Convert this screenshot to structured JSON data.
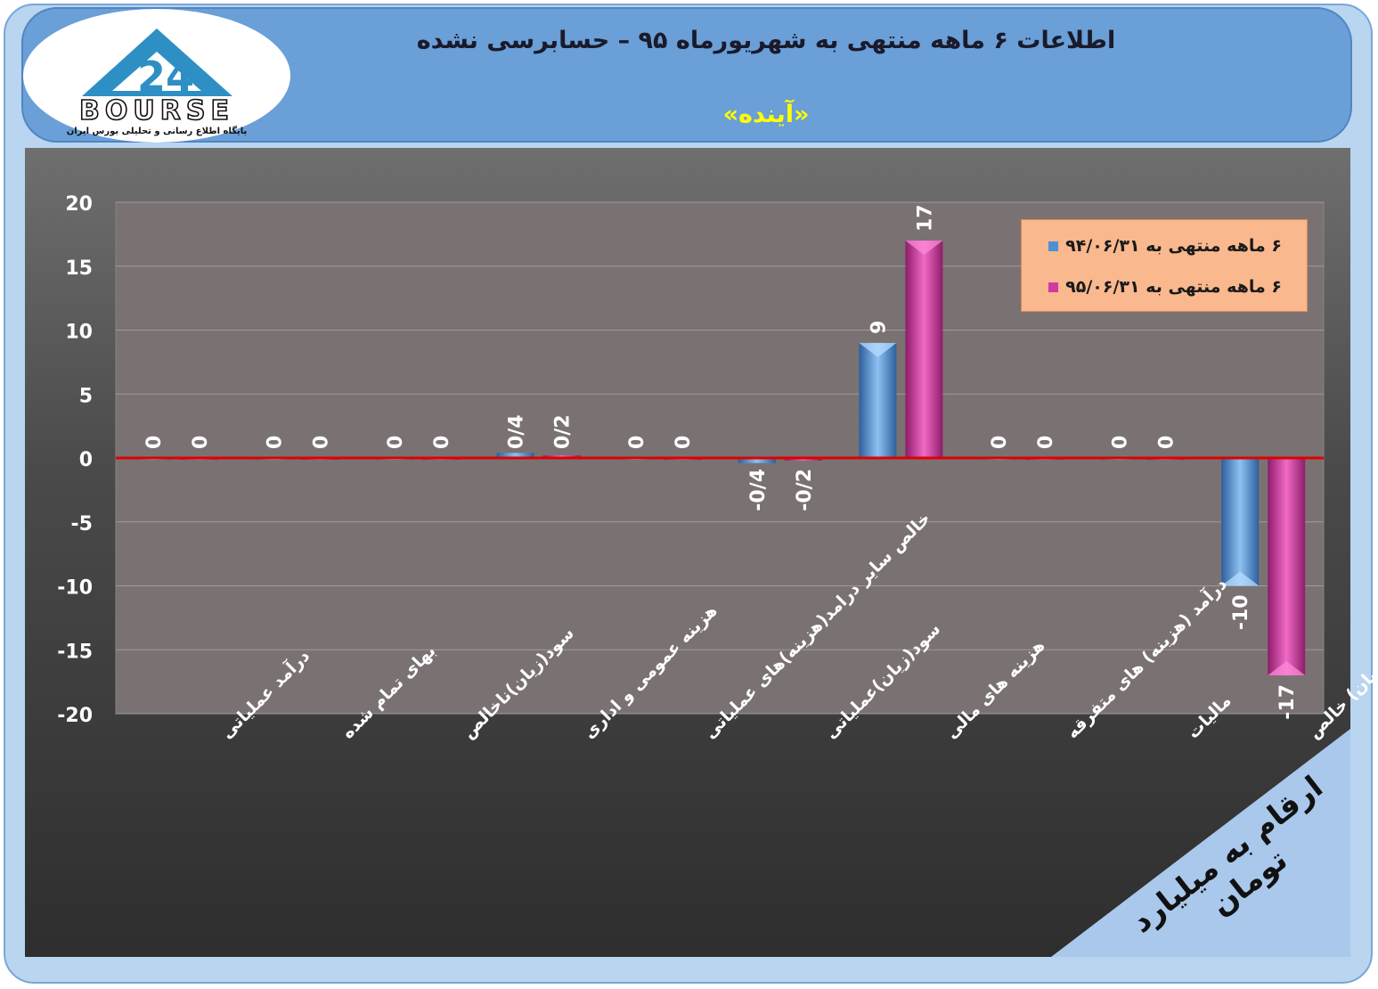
{
  "header": {
    "title": "اطلاعات ۶  ماهه منتهی به شهریورماه ۹۵ – حسابرسی نشده",
    "subtitle": "«آینده»"
  },
  "logo": {
    "text": "BOURSE",
    "tagline": "پایگاه اطلاع رسانی و تحلیلی بورس ایران"
  },
  "units_label": "ارقام به میلیارد تومان",
  "colors": {
    "series1": "#4f8fd6",
    "series2": "#d2399f",
    "zero_line": "#e00000"
  },
  "chart_data": {
    "type": "bar",
    "ylim": [
      -20,
      20
    ],
    "yticks": [
      20,
      15,
      10,
      5,
      0,
      -5,
      -10,
      -15,
      -20
    ],
    "grid": true,
    "legend_position": "top-right",
    "categories": [
      "درآمد عملیاتی",
      "بهای تمام شده",
      "سود(زیان)ناخالص",
      "هزینه عمومی و اداری",
      "خالص سایر درامد(هزینه)های عملیاتی",
      "سود(زیان)عملیاتی",
      "هزینه های مالی",
      "درآمد (هزینه) های متفرقه",
      "مالیات",
      "سود(زیان) خالص"
    ],
    "series": [
      {
        "name": "۶ ماهه منتهی به ۹۴/۰۶/۳۱",
        "values": [
          0,
          0,
          0,
          0.4,
          0,
          -0.4,
          9,
          0,
          0,
          -10
        ],
        "labels": [
          "0",
          "0",
          "0",
          "0/4",
          "0",
          "-0/4",
          "9",
          "0",
          "0",
          "-10"
        ]
      },
      {
        "name": "۶ ماهه منتهی به ۹۵/۰۶/۳۱",
        "values": [
          0,
          0,
          0,
          0.2,
          0,
          -0.2,
          17,
          0,
          0,
          -17
        ],
        "labels": [
          "0",
          "0",
          "0",
          "0/2",
          "0",
          "-0/2",
          "17",
          "0",
          "0",
          "-17"
        ]
      }
    ]
  }
}
